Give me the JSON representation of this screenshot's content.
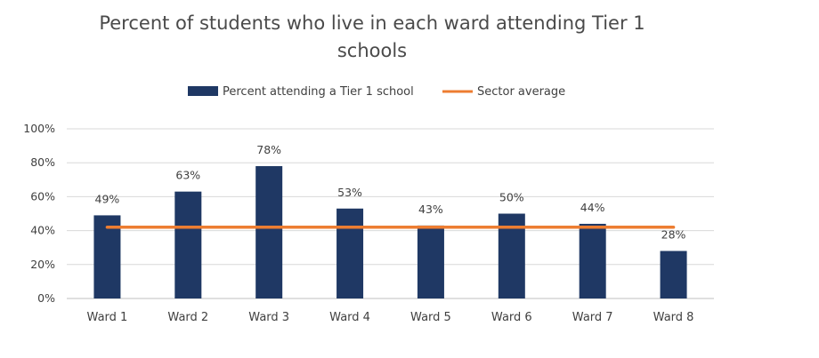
{
  "chart_data": {
    "type": "bar",
    "title_lines": [
      "Percent of students who live in each ward attending Tier 1",
      "schools"
    ],
    "categories": [
      "Ward 1",
      "Ward 2",
      "Ward 3",
      "Ward 4",
      "Ward 5",
      "Ward 6",
      "Ward 7",
      "Ward 8"
    ],
    "series": [
      {
        "name": "Percent attending a Tier 1 school",
        "values": [
          49,
          63,
          78,
          53,
          43,
          50,
          44,
          28
        ],
        "value_labels": [
          "49%",
          "63%",
          "78%",
          "53%",
          "43%",
          "50%",
          "44%",
          "28%"
        ],
        "color": "#1f3864"
      }
    ],
    "reference_line": {
      "name": "Sector average",
      "value": 42,
      "color": "#ed7d31"
    },
    "y_ticks": [
      "0%",
      "20%",
      "40%",
      "60%",
      "80%",
      "100%"
    ],
    "ylim": [
      0,
      100
    ],
    "grid": true,
    "legend_position": "top-center"
  }
}
